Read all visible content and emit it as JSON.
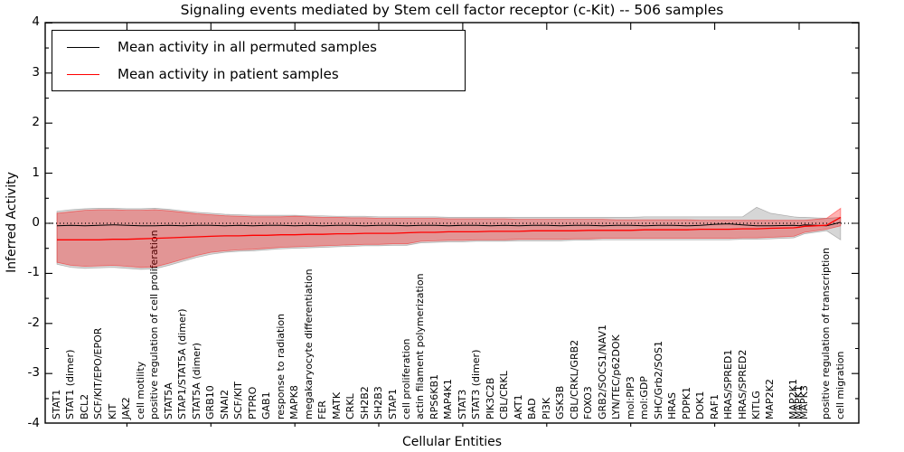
{
  "title": "Signaling events mediated by Stem cell factor receptor (c-Kit) -- 506 samples",
  "axes": {
    "ylabel": "Inferred Activity",
    "xlabel": "Cellular Entities",
    "yticks": [
      "4",
      "3",
      "2",
      "1",
      "0",
      "-1",
      "-2",
      "-3",
      "-4"
    ],
    "ylim": [
      -4,
      4
    ]
  },
  "legend": [
    {
      "label": "Mean activity in all permuted samples",
      "color": "#000000"
    },
    {
      "label": "Mean activity in patient samples",
      "color": "#ff0000"
    }
  ],
  "colors": {
    "patient_line": "#ff0000",
    "permuted_line": "#000000",
    "patient_band_fill": "rgba(255,0,0,0.30)",
    "patient_band_edge": "rgba(255,0,0,0.45)",
    "permuted_band_fill": "rgba(0,0,0,0.16)",
    "permuted_band_edge": "rgba(0,0,0,0.25)"
  },
  "chart_data": {
    "type": "line",
    "title": "Signaling events mediated by Stem cell factor receptor (c-Kit) -- 506 samples",
    "xlabel": "Cellular Entities",
    "ylabel": "Inferred Activity",
    "ylim": [
      -4,
      4
    ],
    "grid": false,
    "zero_line": "dotted",
    "legend_position": "upper left",
    "categories": [
      "STAT1",
      "STAT1 (dimer)",
      "BCL2",
      "SCF/KIT/EPO/EPOR",
      "KIT",
      "JAK2",
      "cell motility",
      "positive regulation of cell proliferation",
      "STAT5A",
      "STAP1/STAT5A (dimer)",
      "STAT5A (dimer)",
      "GRB10",
      "SNAI2",
      "SCF/KIT",
      "PTPRO",
      "GAB1",
      "response to radiation",
      "MAPK8",
      "megakaryocyte differentiation",
      "FER",
      "MATK",
      "CRKL",
      "SH2B2",
      "SH2B3",
      "STAP1",
      "cell proliferation",
      "actin filament polymerization",
      "RPS6KB1",
      "MAP4K1",
      "STAT3",
      "STAT3 (dimer)",
      "PIK3C2B",
      "CBL/CRKL",
      "AKT1",
      "BAD",
      "PI3K",
      "GSK3B",
      "CBL/CRKL/GRB2",
      "FOXO3",
      "GRB2/SOCS1/NAV1",
      "LYN/TEC/p62DOK",
      "mol:PIP3",
      "mol:GDP",
      "SHC/Grb2/SOS1",
      "HRAS",
      "PDPK1",
      "DOK1",
      "RAF1",
      "HRAS/SPRED1",
      "HRAS/SPRED2",
      "KITLG",
      "MAP2K2",
      "MAP2K1",
      "MAPK1",
      "MAPK3",
      "positive regulation of transcription",
      "cell migration"
    ],
    "crowded_indices": [
      52,
      53,
      54
    ],
    "series": [
      {
        "name": "Mean activity in all permuted samples",
        "role": "permuted_mean",
        "color": "#000000",
        "values": [
          -0.05,
          -0.04,
          -0.05,
          -0.04,
          -0.03,
          -0.04,
          -0.05,
          -0.05,
          -0.04,
          -0.05,
          -0.04,
          -0.04,
          -0.05,
          -0.04,
          -0.05,
          -0.04,
          -0.04,
          -0.05,
          -0.04,
          -0.05,
          -0.04,
          -0.04,
          -0.05,
          -0.04,
          -0.04,
          -0.05,
          -0.04,
          -0.04,
          -0.05,
          -0.04,
          -0.04,
          -0.05,
          -0.04,
          -0.05,
          -0.04,
          -0.04,
          -0.05,
          -0.04,
          -0.04,
          -0.05,
          -0.04,
          -0.04,
          -0.05,
          -0.04,
          -0.04,
          -0.05,
          -0.04,
          -0.02,
          -0.01,
          -0.03,
          -0.05,
          -0.05,
          -0.04,
          -0.05,
          -0.03,
          -0.05,
          0.02
        ]
      },
      {
        "name": "Mean activity in patient samples",
        "role": "patient_mean",
        "color": "#ff0000",
        "values": [
          -0.33,
          -0.33,
          -0.33,
          -0.33,
          -0.32,
          -0.32,
          -0.31,
          -0.3,
          -0.29,
          -0.28,
          -0.27,
          -0.26,
          -0.25,
          -0.25,
          -0.24,
          -0.24,
          -0.23,
          -0.23,
          -0.22,
          -0.22,
          -0.21,
          -0.21,
          -0.2,
          -0.2,
          -0.2,
          -0.19,
          -0.18,
          -0.18,
          -0.17,
          -0.17,
          -0.17,
          -0.16,
          -0.16,
          -0.16,
          -0.15,
          -0.15,
          -0.15,
          -0.15,
          -0.14,
          -0.14,
          -0.14,
          -0.14,
          -0.13,
          -0.13,
          -0.13,
          -0.13,
          -0.12,
          -0.12,
          -0.12,
          -0.11,
          -0.11,
          -0.1,
          -0.09,
          -0.08,
          -0.06,
          -0.04,
          0.12
        ]
      },
      {
        "name": "Patient band upper",
        "role": "patient_upper",
        "color": "rgba(255,0,0,0.30)",
        "values": [
          0.2,
          0.23,
          0.26,
          0.27,
          0.27,
          0.26,
          0.26,
          0.27,
          0.25,
          0.22,
          0.19,
          0.17,
          0.15,
          0.14,
          0.13,
          0.13,
          0.13,
          0.14,
          0.13,
          0.12,
          0.12,
          0.11,
          0.11,
          0.1,
          0.1,
          0.1,
          0.1,
          0.1,
          0.09,
          0.09,
          0.09,
          0.09,
          0.09,
          0.08,
          0.08,
          0.08,
          0.08,
          0.08,
          0.08,
          0.08,
          0.07,
          0.07,
          0.07,
          0.07,
          0.07,
          0.07,
          0.06,
          0.06,
          0.06,
          0.06,
          0.06,
          0.06,
          0.06,
          0.06,
          0.06,
          0.1,
          0.3
        ]
      },
      {
        "name": "Patient band lower",
        "role": "patient_lower",
        "color": "rgba(255,0,0,0.30)",
        "values": [
          -0.78,
          -0.84,
          -0.86,
          -0.85,
          -0.84,
          -0.86,
          -0.88,
          -0.87,
          -0.8,
          -0.72,
          -0.64,
          -0.58,
          -0.55,
          -0.53,
          -0.52,
          -0.5,
          -0.48,
          -0.47,
          -0.46,
          -0.45,
          -0.44,
          -0.43,
          -0.42,
          -0.42,
          -0.41,
          -0.41,
          -0.36,
          -0.35,
          -0.34,
          -0.34,
          -0.33,
          -0.33,
          -0.33,
          -0.32,
          -0.32,
          -0.32,
          -0.32,
          -0.31,
          -0.31,
          -0.3,
          -0.3,
          -0.3,
          -0.3,
          -0.3,
          -0.3,
          -0.3,
          -0.3,
          -0.3,
          -0.3,
          -0.29,
          -0.29,
          -0.28,
          -0.26,
          -0.22,
          -0.18,
          -0.12,
          -0.05
        ]
      },
      {
        "name": "Permuted band upper",
        "role": "permuted_upper",
        "color": "rgba(0,0,0,0.16)",
        "values": [
          0.24,
          0.27,
          0.29,
          0.3,
          0.3,
          0.29,
          0.29,
          0.3,
          0.28,
          0.25,
          0.22,
          0.2,
          0.18,
          0.17,
          0.16,
          0.16,
          0.16,
          0.16,
          0.15,
          0.15,
          0.14,
          0.14,
          0.14,
          0.13,
          0.13,
          0.13,
          0.13,
          0.13,
          0.12,
          0.12,
          0.12,
          0.12,
          0.12,
          0.12,
          0.12,
          0.12,
          0.12,
          0.12,
          0.12,
          0.12,
          0.12,
          0.12,
          0.13,
          0.13,
          0.13,
          0.13,
          0.13,
          0.13,
          0.13,
          0.13,
          0.32,
          0.2,
          0.13,
          0.12,
          0.12,
          0.1,
          0.12
        ]
      },
      {
        "name": "Permuted band lower",
        "role": "permuted_lower",
        "color": "rgba(0,0,0,0.16)",
        "values": [
          -0.82,
          -0.88,
          -0.9,
          -0.89,
          -0.88,
          -0.9,
          -0.92,
          -0.91,
          -0.84,
          -0.76,
          -0.68,
          -0.62,
          -0.58,
          -0.56,
          -0.55,
          -0.53,
          -0.51,
          -0.5,
          -0.49,
          -0.48,
          -0.47,
          -0.46,
          -0.45,
          -0.45,
          -0.44,
          -0.44,
          -0.39,
          -0.38,
          -0.37,
          -0.37,
          -0.36,
          -0.36,
          -0.36,
          -0.35,
          -0.35,
          -0.35,
          -0.35,
          -0.34,
          -0.34,
          -0.33,
          -0.33,
          -0.33,
          -0.33,
          -0.33,
          -0.33,
          -0.33,
          -0.33,
          -0.33,
          -0.33,
          -0.32,
          -0.32,
          -0.31,
          -0.29,
          -0.25,
          -0.21,
          -0.15,
          -0.33
        ]
      }
    ]
  }
}
